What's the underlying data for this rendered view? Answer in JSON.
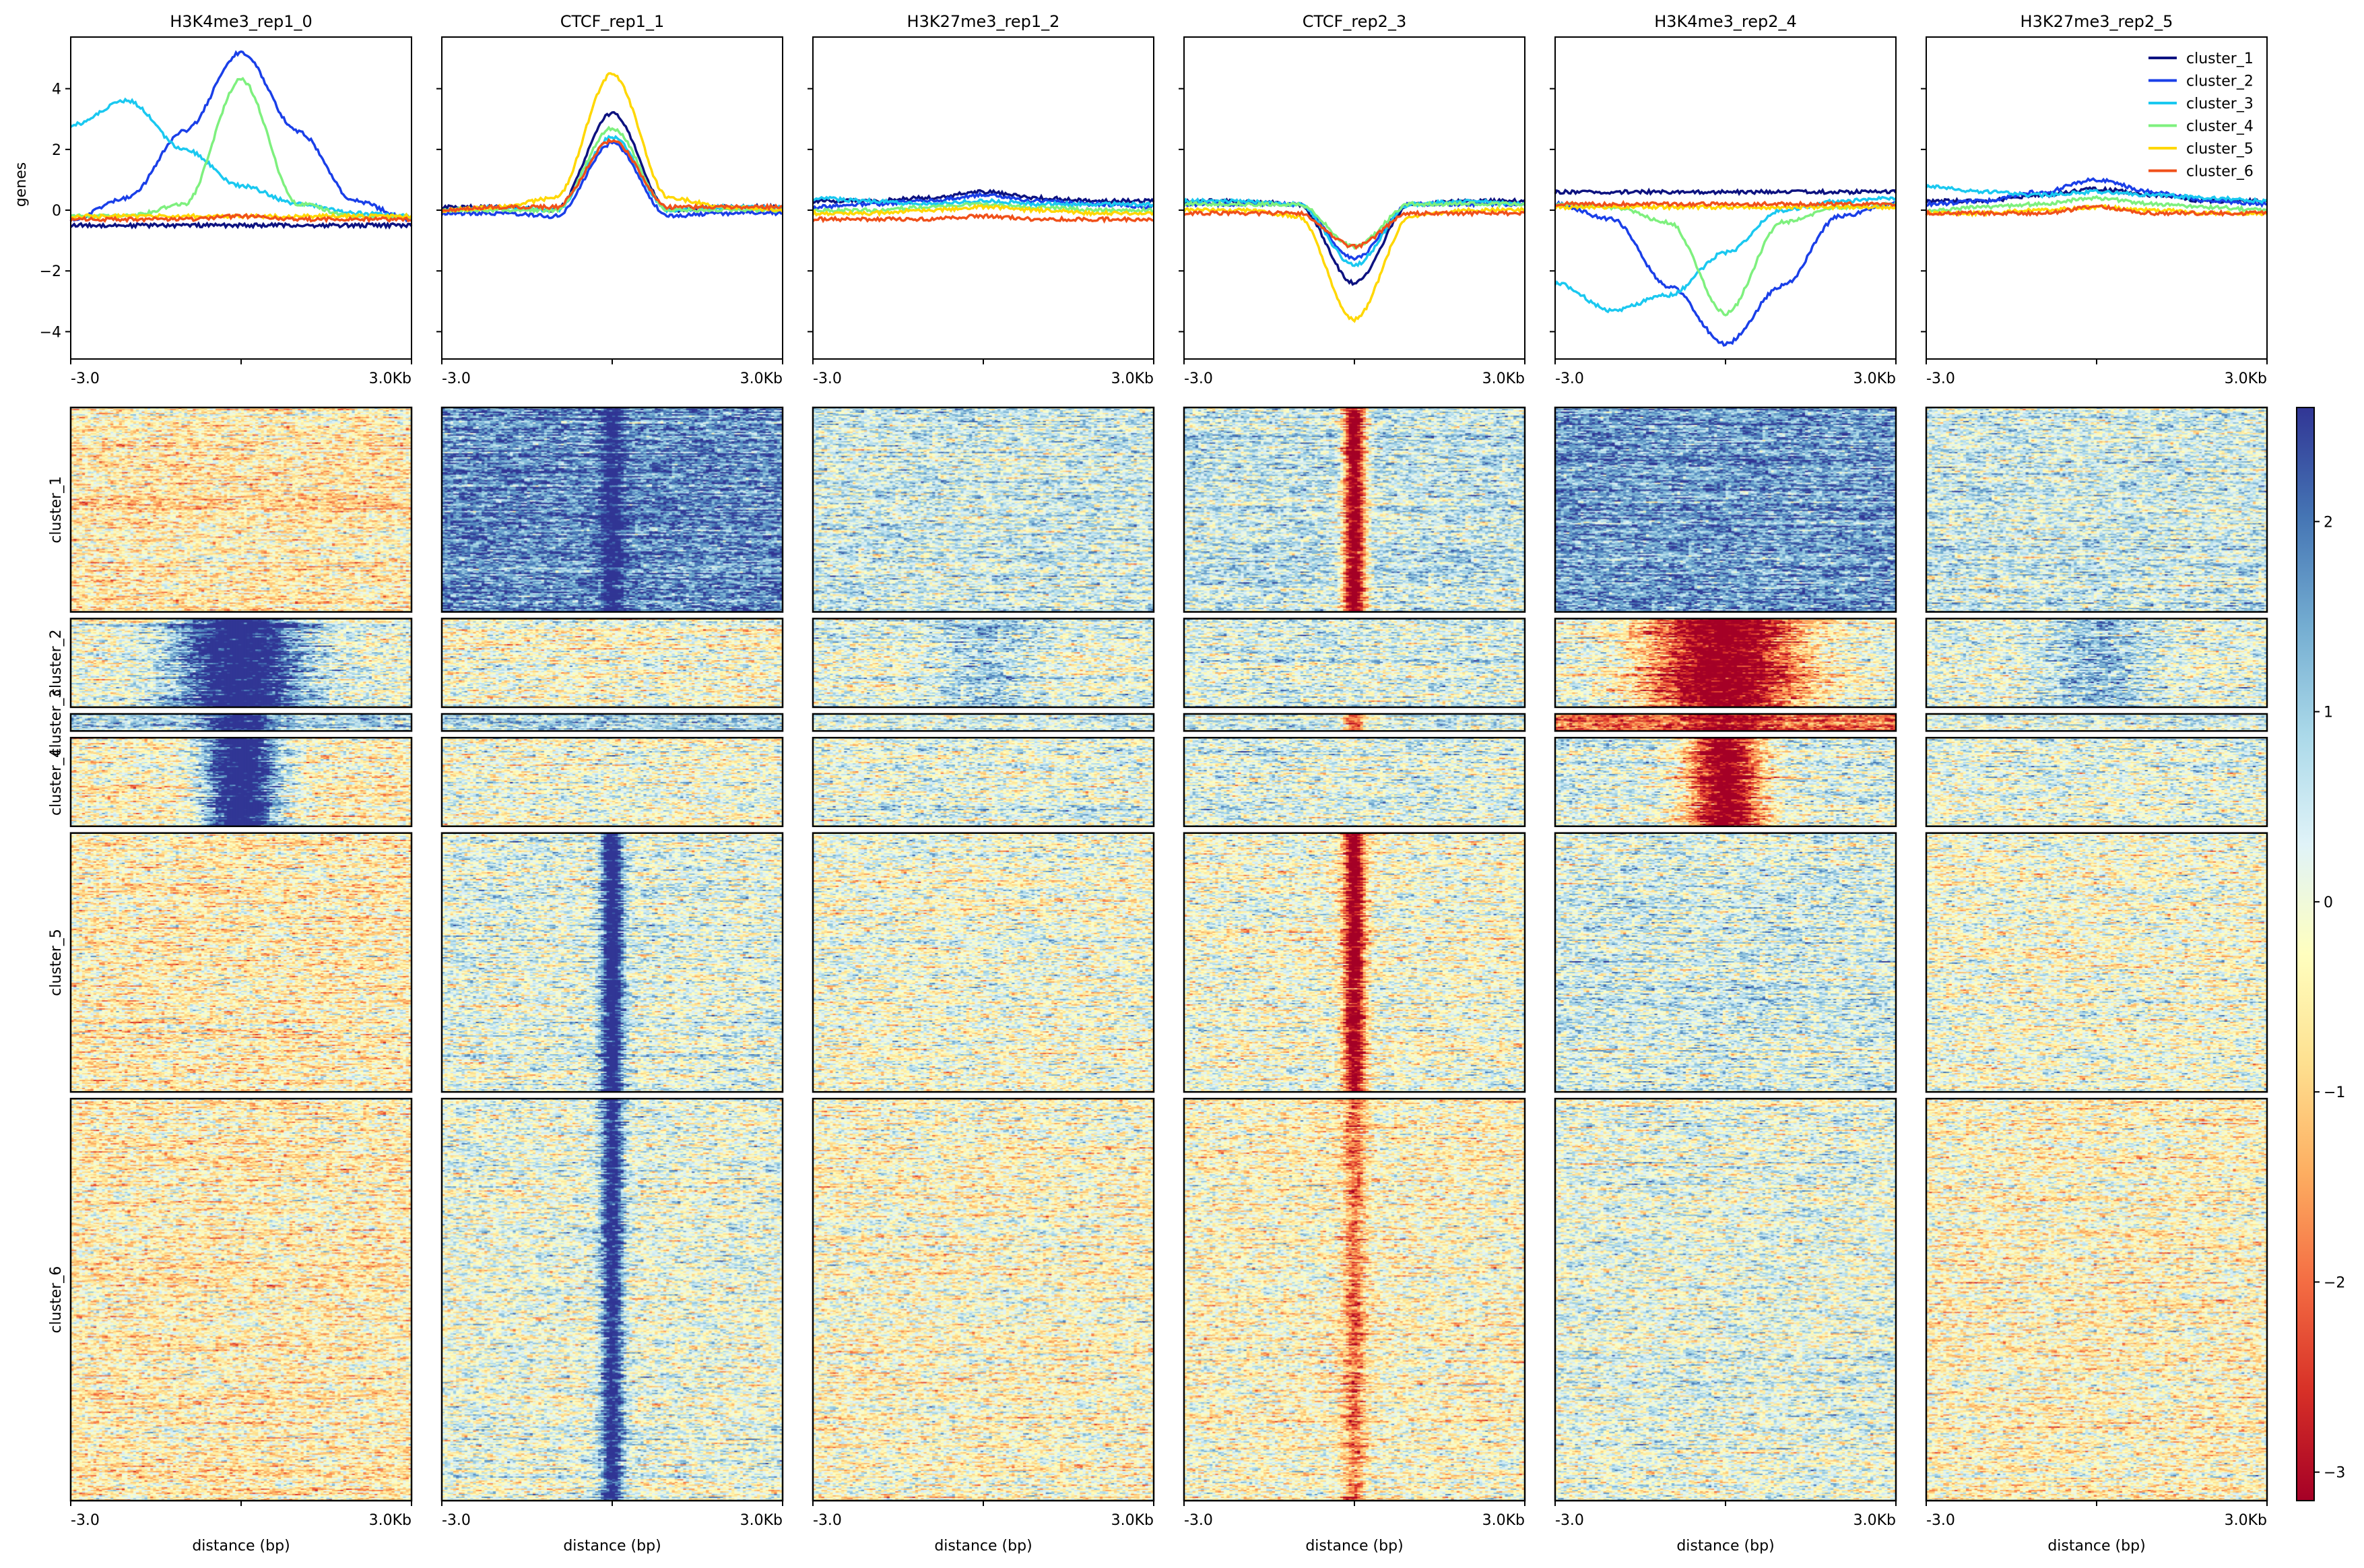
{
  "chart_data": {
    "type": "heatmap",
    "samples": [
      "H3K4me3_rep1_0",
      "CTCF_rep1_1",
      "H3K27me3_rep1_2",
      "CTCF_rep2_3",
      "H3K4me3_rep2_4",
      "H3K27me3_rep2_5"
    ],
    "profile": {
      "type": "line",
      "ylabel": "genes",
      "ylim": [
        -4.9,
        5.7
      ],
      "yticks": [
        -4,
        -2,
        0,
        2,
        4
      ],
      "ytick_labels": [
        "−4",
        "−2",
        "0",
        "2",
        "4"
      ],
      "x": [
        -3.0,
        -2.0,
        -1.0,
        0.0,
        1.0,
        2.0,
        3.0
      ],
      "xtick_labels": [
        "-3.0",
        "3.0Kb"
      ],
      "legend": {
        "placement": "top-right",
        "panel": 5
      },
      "series": [
        {
          "name": "cluster_1",
          "color": "#0d1280",
          "values": [
            [
              -0.5,
              -0.5,
              -0.5,
              -0.5,
              -0.5,
              -0.5,
              -0.5
            ],
            [
              0.1,
              0.1,
              0.0,
              3.2,
              0.0,
              0.1,
              0.1
            ],
            [
              0.3,
              0.3,
              0.4,
              0.6,
              0.4,
              0.3,
              0.3
            ],
            [
              0.3,
              0.3,
              0.2,
              -2.4,
              0.2,
              0.3,
              0.3
            ],
            [
              0.6,
              0.6,
              0.6,
              0.6,
              0.6,
              0.6,
              0.6
            ],
            [
              0.3,
              0.3,
              0.5,
              0.7,
              0.5,
              0.3,
              0.3
            ]
          ]
        },
        {
          "name": "cluster_2",
          "color": "#1a3fe8",
          "values": [
            [
              -0.3,
              0.4,
              2.6,
              5.2,
              2.6,
              0.3,
              -0.3
            ],
            [
              -0.1,
              -0.1,
              -0.2,
              2.2,
              -0.2,
              -0.1,
              -0.1
            ],
            [
              0.1,
              0.2,
              0.3,
              0.5,
              0.3,
              0.2,
              0.1
            ],
            [
              0.2,
              0.2,
              0.2,
              -1.6,
              0.2,
              0.2,
              0.2
            ],
            [
              0.2,
              -0.3,
              -2.5,
              -4.4,
              -2.5,
              -0.2,
              0.2
            ],
            [
              0.2,
              0.3,
              0.6,
              1.0,
              0.6,
              0.3,
              0.2
            ]
          ]
        },
        {
          "name": "cluster_3",
          "color": "#1ac8f0",
          "values": [
            [
              2.8,
              3.6,
              2.0,
              0.8,
              0.2,
              -0.1,
              -0.2
            ],
            [
              0.0,
              0.1,
              0.0,
              2.4,
              0.0,
              0.1,
              0.1
            ],
            [
              0.4,
              0.3,
              0.2,
              0.3,
              0.2,
              0.2,
              0.2
            ],
            [
              0.3,
              0.3,
              0.2,
              -1.8,
              0.2,
              0.3,
              0.2
            ],
            [
              -2.4,
              -3.3,
              -2.8,
              -1.4,
              0.0,
              0.3,
              0.4
            ],
            [
              0.8,
              0.6,
              0.5,
              0.6,
              0.5,
              0.4,
              0.3
            ]
          ]
        },
        {
          "name": "cluster_4",
          "color": "#7ef07e",
          "values": [
            [
              -0.2,
              -0.2,
              0.2,
              4.3,
              0.2,
              -0.2,
              -0.2
            ],
            [
              0.0,
              0.0,
              0.0,
              2.7,
              0.0,
              0.0,
              0.0
            ],
            [
              0.0,
              0.0,
              0.1,
              0.2,
              0.1,
              0.0,
              0.0
            ],
            [
              0.2,
              0.2,
              0.2,
              -1.2,
              0.2,
              0.2,
              0.2
            ],
            [
              0.2,
              0.1,
              -0.4,
              -3.4,
              -0.4,
              0.1,
              0.2
            ],
            [
              0.0,
              0.1,
              0.2,
              0.4,
              0.2,
              0.1,
              0.0
            ]
          ]
        },
        {
          "name": "cluster_5",
          "color": "#ffd700",
          "values": [
            [
              -0.2,
              -0.2,
              -0.2,
              -0.2,
              -0.2,
              -0.2,
              -0.2
            ],
            [
              0.0,
              0.1,
              0.4,
              4.5,
              0.4,
              0.1,
              0.0
            ],
            [
              -0.1,
              -0.1,
              0.0,
              0.1,
              0.0,
              -0.1,
              -0.1
            ],
            [
              0.0,
              0.0,
              -0.2,
              -3.6,
              -0.2,
              0.0,
              0.0
            ],
            [
              0.1,
              0.1,
              0.1,
              0.1,
              0.1,
              0.1,
              0.1
            ],
            [
              -0.1,
              -0.1,
              0.0,
              0.1,
              0.0,
              -0.1,
              -0.1
            ]
          ]
        },
        {
          "name": "cluster_6",
          "color": "#f0501a",
          "values": [
            [
              -0.3,
              -0.3,
              -0.3,
              -0.2,
              -0.3,
              -0.3,
              -0.3
            ],
            [
              0.0,
              0.1,
              0.1,
              2.3,
              0.1,
              0.1,
              0.1
            ],
            [
              -0.3,
              -0.3,
              -0.3,
              -0.2,
              -0.3,
              -0.3,
              -0.3
            ],
            [
              -0.1,
              -0.1,
              -0.1,
              -1.2,
              -0.1,
              -0.1,
              -0.1
            ],
            [
              0.2,
              0.2,
              0.2,
              0.2,
              0.2,
              0.2,
              0.2
            ],
            [
              -0.1,
              -0.1,
              -0.1,
              0.1,
              -0.1,
              -0.1,
              -0.1
            ]
          ]
        }
      ]
    },
    "heatmap": {
      "clusters": [
        {
          "label": "cluster_1",
          "rows": 300
        },
        {
          "label": "cluster_2",
          "rows": 130
        },
        {
          "label": "cluster_3",
          "rows": 25
        },
        {
          "label": "cluster_4",
          "rows": 130
        },
        {
          "label": "cluster_5",
          "rows": 380
        },
        {
          "label": "cluster_6",
          "rows": 590
        }
      ],
      "background": [
        [
          -0.5,
          1.8,
          0.5,
          0.6,
          1.6,
          0.5
        ],
        [
          0.1,
          -0.1,
          0.2,
          0.3,
          0.2,
          0.2
        ],
        [
          1.0,
          0.8,
          0.5,
          0.6,
          -2.0,
          0.5
        ],
        [
          -0.3,
          0.0,
          0.2,
          0.3,
          0.3,
          0.2
        ],
        [
          -0.4,
          0.2,
          0.0,
          0.0,
          0.4,
          0.0
        ],
        [
          -0.4,
          0.1,
          -0.2,
          -0.2,
          0.2,
          -0.3
        ]
      ],
      "peak_value": [
        [
          0,
          3,
          0,
          -3,
          0,
          0
        ],
        [
          3,
          0,
          0.8,
          0,
          -3,
          1.0
        ],
        [
          3,
          0,
          0,
          -1.5,
          -3,
          0
        ],
        [
          3,
          0,
          0,
          0,
          -3,
          0
        ],
        [
          0,
          3,
          0,
          -3,
          0,
          0
        ],
        [
          0,
          2.6,
          0,
          -1.6,
          0,
          0
        ]
      ],
      "peak_width_kb": [
        [
          0,
          0.3,
          0,
          0.3,
          0,
          0
        ],
        [
          1.7,
          0,
          1.5,
          0,
          2.2,
          1.5
        ],
        [
          0.8,
          0,
          0,
          0.3,
          1.2,
          0
        ],
        [
          1.0,
          0,
          0,
          0,
          1.0,
          0
        ],
        [
          0,
          0.3,
          0,
          0.3,
          0,
          0
        ],
        [
          0,
          0.3,
          0,
          0.3,
          0,
          0
        ]
      ],
      "xlabel": "distance (bp)",
      "xtick_labels": [
        "-3.0",
        "3.0Kb"
      ]
    },
    "colorbar": {
      "range": [
        -3.15,
        2.6
      ],
      "ticks": [
        -3,
        -2,
        -1,
        0,
        1,
        2
      ],
      "tick_labels": [
        "−3",
        "−2",
        "−1",
        "0",
        "1",
        "2"
      ],
      "colormap": [
        "#a50026",
        "#d73027",
        "#f46d43",
        "#fdae61",
        "#fee090",
        "#ffffbf",
        "#e0f3f8",
        "#abd9e9",
        "#74add1",
        "#4575b4",
        "#313695"
      ]
    }
  }
}
